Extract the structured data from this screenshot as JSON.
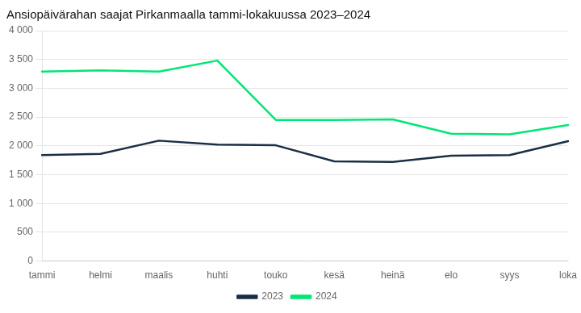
{
  "chart_data": {
    "type": "line",
    "title": "Ansiopäivärahan saajat Pirkanmaalla tammi-lokakuussa 2023–2024",
    "categories": [
      "tammi",
      "helmi",
      "maalis",
      "huhti",
      "touko",
      "kesä",
      "heinä",
      "elo",
      "syys",
      "loka"
    ],
    "series": [
      {
        "name": "2023",
        "color": "#1a2e44",
        "values": [
          1840,
          1860,
          2090,
          2020,
          2010,
          1730,
          1720,
          1830,
          1840,
          2080
        ]
      },
      {
        "name": "2024",
        "color": "#00e676",
        "values": [
          3290,
          3310,
          3290,
          3480,
          2450,
          2450,
          2460,
          2210,
          2200,
          2360
        ]
      }
    ],
    "ylim": [
      0,
      4000
    ],
    "yticks": [
      0,
      500,
      {
        "value": 1000,
        "label": "1 000"
      },
      {
        "value": 1500,
        "label": "1 500"
      },
      {
        "value": 2000,
        "label": "2 000"
      },
      {
        "value": 2500,
        "label": "2 500"
      },
      {
        "value": 3000,
        "label": "3 000"
      },
      {
        "value": 3500,
        "label": "3 500"
      },
      {
        "value": 4000,
        "label": "4 000"
      }
    ],
    "grid": true,
    "legend": "bottom"
  }
}
